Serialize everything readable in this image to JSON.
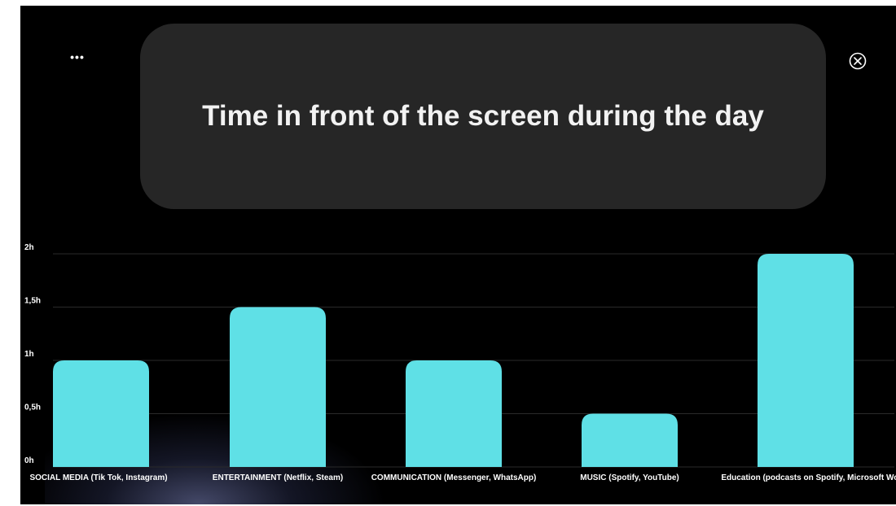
{
  "title_card": {
    "title": "Time in front of the screen during the day"
  },
  "controls": {
    "more_icon": "more-horizontal-icon",
    "more_glyph": "•••",
    "close_icon": "close-circle-icon"
  },
  "colors": {
    "background": "#000000",
    "card": "#262626",
    "bar": "#5fe0e6",
    "title_text": "#f2f2f2",
    "axis_text": "#ffffff",
    "grid": "#2a2a2a"
  },
  "chart_data": {
    "type": "bar",
    "title": "Time in front of the screen during the day",
    "categories": [
      "SOCIAL MEDIA (Tik Tok, Instagram)",
      "ENTERTAINMENT (Netflix, Steam)",
      "COMMUNICATION (Messenger, WhatsApp)",
      "MUSIC (Spotify, YouTube)",
      "Education (podcasts on Spotify, Microsoft Word)"
    ],
    "values": [
      1,
      1.5,
      1,
      0.5,
      2
    ],
    "ylim": [
      0,
      2
    ],
    "yticks": [
      0,
      0.5,
      1,
      1.5,
      2
    ],
    "ytick_labels": [
      "0h",
      "0,5h",
      "1h",
      "1,5h",
      "2h"
    ],
    "xlabel": "",
    "ylabel": "",
    "grid": true,
    "legend": "none"
  }
}
